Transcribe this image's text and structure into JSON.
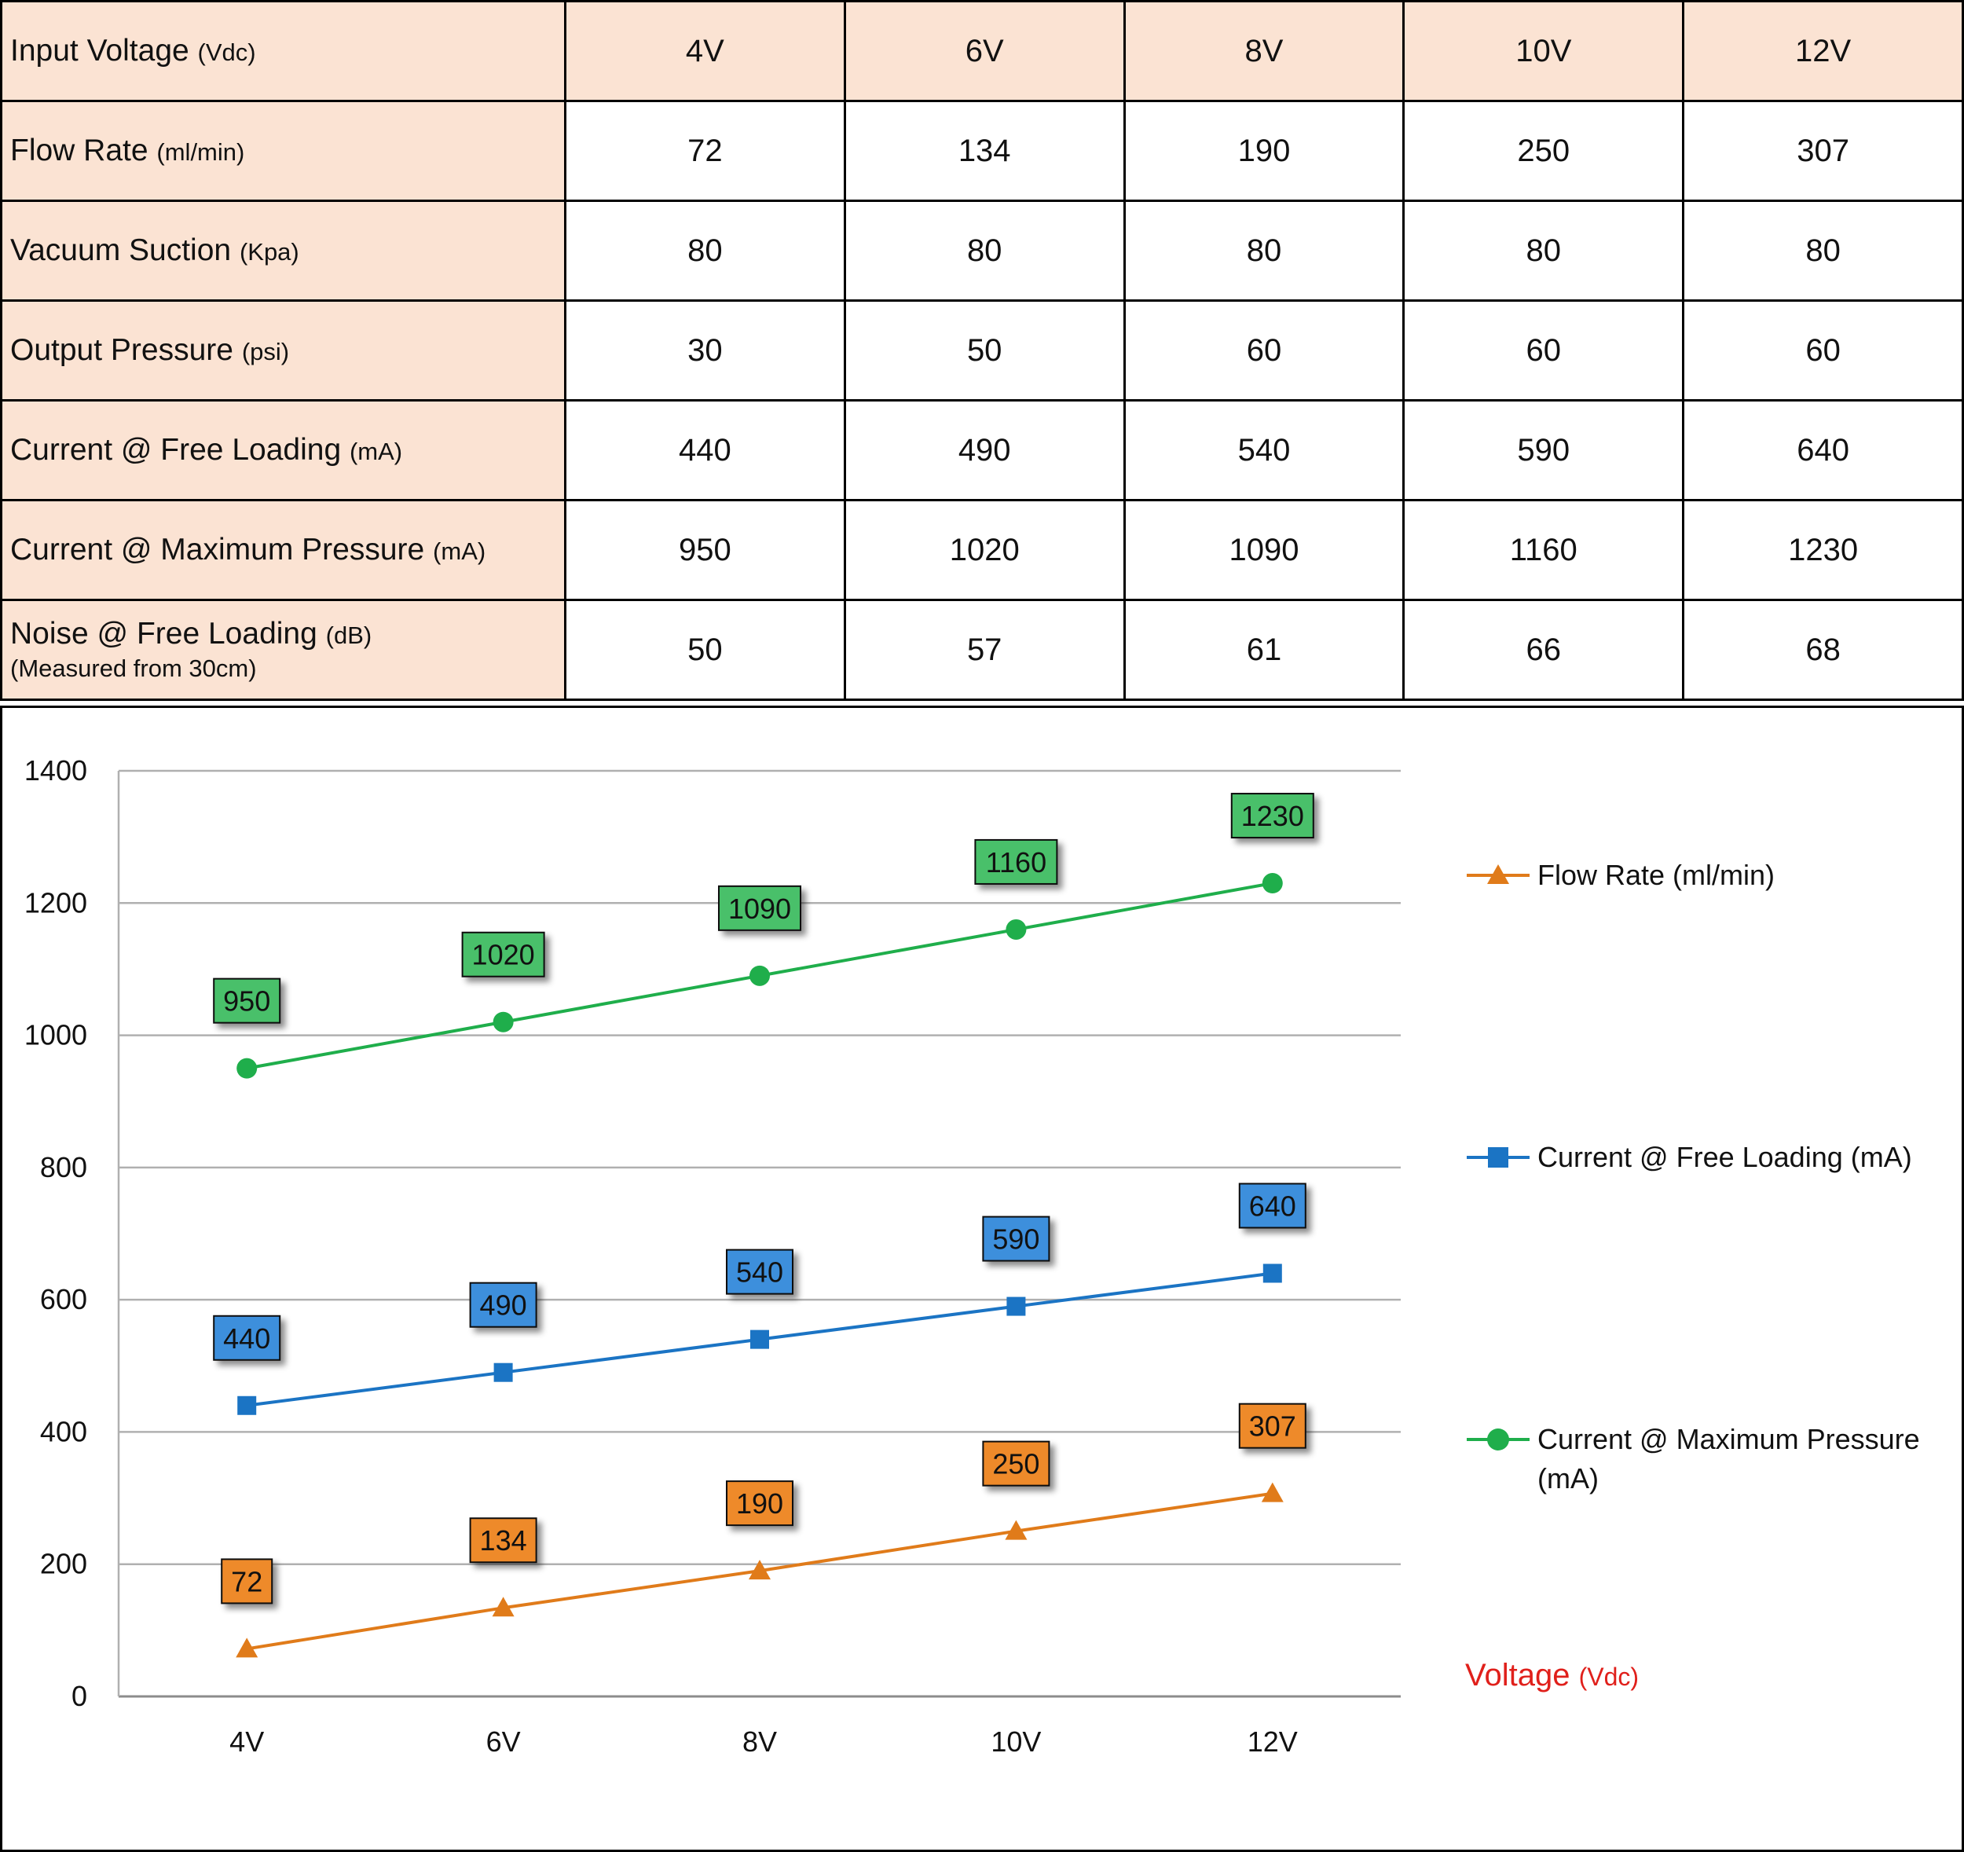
{
  "table": {
    "columns": [
      "4V",
      "6V",
      "8V",
      "10V",
      "12V"
    ],
    "header": {
      "label": "Input Voltage",
      "unit": "(Vdc)"
    },
    "rows": [
      {
        "label": "Flow Rate",
        "unit": "(ml/min)",
        "values": [
          "72",
          "134",
          "190",
          "250",
          "307"
        ]
      },
      {
        "label": "Vacuum Suction",
        "unit": "(Kpa)",
        "values": [
          "80",
          "80",
          "80",
          "80",
          "80"
        ]
      },
      {
        "label": "Output Pressure",
        "unit": "(psi)",
        "values": [
          "30",
          "50",
          "60",
          "60",
          "60"
        ]
      },
      {
        "label": "Current @ Free Loading",
        "unit": "(mA)",
        "values": [
          "440",
          "490",
          "540",
          "590",
          "640"
        ]
      },
      {
        "label": "Current @ Maximum Pressure",
        "unit": "(mA)",
        "values": [
          "950",
          "1020",
          "1090",
          "1160",
          "1230"
        ]
      },
      {
        "label": "Noise @ Free Loading",
        "unit": "(dB)",
        "sub": "(Measured from 30cm)",
        "values": [
          "50",
          "57",
          "61",
          "66",
          "68"
        ]
      }
    ]
  },
  "chart_data": {
    "type": "line",
    "x": [
      "4V",
      "6V",
      "8V",
      "10V",
      "12V"
    ],
    "xlabel": "Voltage",
    "xlabel_unit": "(Vdc)",
    "ylim": [
      0,
      1400
    ],
    "yticks": [
      0,
      200,
      400,
      600,
      800,
      1000,
      1200,
      1400
    ],
    "grid": true,
    "legend_position": "right",
    "series": [
      {
        "name": "Flow Rate (ml/min)",
        "values": [
          72,
          134,
          190,
          250,
          307
        ],
        "color": "#e07b1a",
        "label_fill": "#ee8a2c",
        "marker": "triangle"
      },
      {
        "name": "Current @ Free Loading (mA)",
        "values": [
          440,
          490,
          540,
          590,
          640
        ],
        "color": "#1b74c4",
        "label_fill": "#3d8fdc",
        "marker": "square"
      },
      {
        "name": "Current @ Maximum Pressure (mA)",
        "values": [
          950,
          1020,
          1090,
          1160,
          1230
        ],
        "color": "#1fae4b",
        "label_fill": "#48c06a",
        "marker": "circle"
      }
    ]
  }
}
